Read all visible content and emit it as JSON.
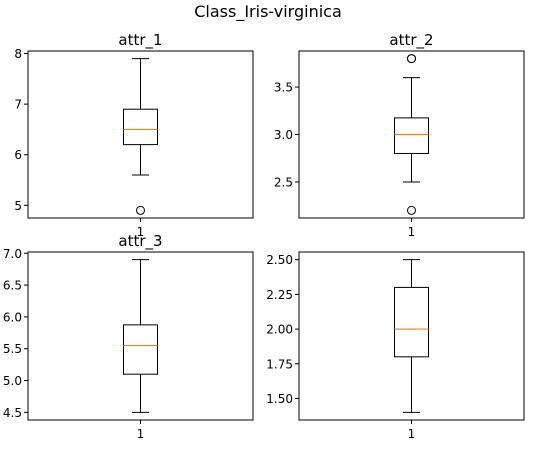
{
  "figure_title": "Class_Iris-virginica",
  "chart_data": [
    {
      "type": "box",
      "title": "attr_1",
      "categories": [
        "1"
      ],
      "ylim": [
        4.75,
        8.05
      ],
      "yticks": [
        5,
        6,
        7,
        8
      ],
      "ytick_labels": [
        "5",
        "6",
        "7",
        "8"
      ],
      "xtick_labels": [
        "1"
      ],
      "box": {
        "whisker_low": 5.6,
        "q1": 6.2,
        "median": 6.5,
        "q3": 6.9,
        "whisker_high": 7.9,
        "outliers": [
          4.9
        ]
      },
      "colors": {
        "box": "#000000",
        "median": "#ff7f0e"
      }
    },
    {
      "type": "box",
      "title": "attr_2",
      "categories": [
        "1"
      ],
      "ylim": [
        2.12,
        3.88
      ],
      "yticks": [
        2.5,
        3.0,
        3.5
      ],
      "ytick_labels": [
        "2.5",
        "3.0",
        "3.5"
      ],
      "xtick_labels": [
        "1"
      ],
      "box": {
        "whisker_low": 2.5,
        "q1": 2.8,
        "median": 3.0,
        "q3": 3.175,
        "whisker_high": 3.6,
        "outliers": [
          2.2,
          3.8,
          3.8
        ]
      },
      "colors": {
        "box": "#000000",
        "median": "#ff7f0e"
      }
    },
    {
      "type": "box",
      "title": "attr_3",
      "categories": [
        "1"
      ],
      "ylim": [
        4.38,
        7.02
      ],
      "yticks": [
        4.5,
        5.0,
        5.5,
        6.0,
        6.5,
        7.0
      ],
      "ytick_labels": [
        "4.5",
        "5.0",
        "5.5",
        "6.0",
        "6.5",
        "7.0"
      ],
      "xtick_labels": [
        "1"
      ],
      "box": {
        "whisker_low": 4.5,
        "q1": 5.1,
        "median": 5.55,
        "q3": 5.875,
        "whisker_high": 6.9,
        "outliers": []
      },
      "colors": {
        "box": "#000000",
        "median": "#ff7f0e"
      }
    },
    {
      "type": "box",
      "title": "",
      "categories": [
        "1"
      ],
      "ylim": [
        1.345,
        2.555
      ],
      "yticks": [
        1.5,
        1.75,
        2.0,
        2.25,
        2.5
      ],
      "ytick_labels": [
        "1.50",
        "1.75",
        "2.00",
        "2.25",
        "2.50"
      ],
      "xtick_labels": [
        "1"
      ],
      "box": {
        "whisker_low": 1.4,
        "q1": 1.8,
        "median": 2.0,
        "q3": 2.3,
        "whisker_high": 2.5,
        "outliers": []
      },
      "colors": {
        "box": "#000000",
        "median": "#ff7f0e"
      }
    }
  ]
}
